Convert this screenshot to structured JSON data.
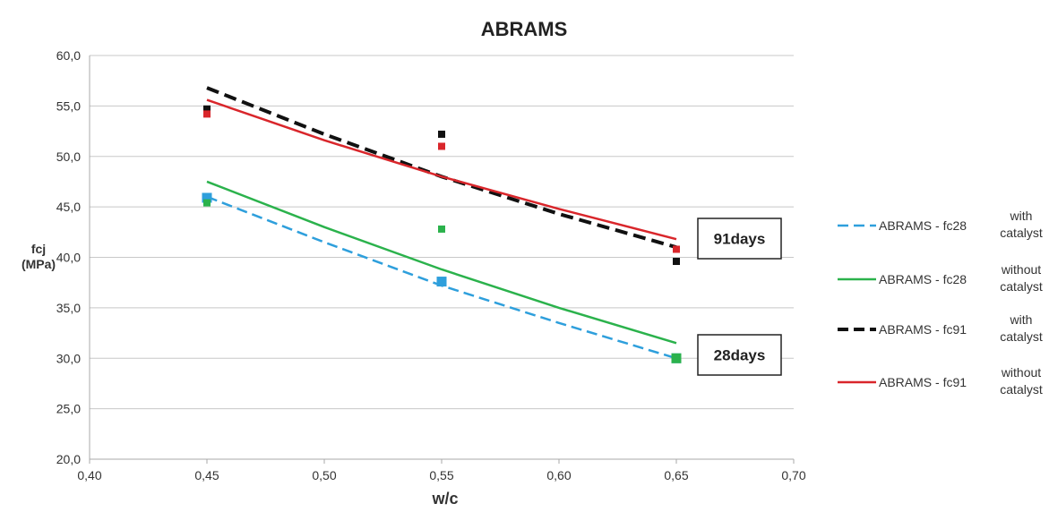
{
  "chart_data": {
    "type": "scatter",
    "title": "ABRAMS",
    "xlabel": "w/c",
    "ylabel": [
      "fcj",
      "(MPa)"
    ],
    "xlim": [
      0.4,
      0.7
    ],
    "ylim": [
      20.0,
      60.0
    ],
    "x_ticks": [
      "0,40",
      "0,45",
      "0,50",
      "0,55",
      "0,60",
      "0,65",
      "0,70"
    ],
    "y_ticks": [
      "20,0",
      "25,0",
      "30,0",
      "35,0",
      "40,0",
      "45,0",
      "50,0",
      "55,0",
      "60,0"
    ],
    "x_tick_values": [
      0.4,
      0.45,
      0.5,
      0.55,
      0.6,
      0.65,
      0.7
    ],
    "y_tick_values": [
      20,
      25,
      30,
      35,
      40,
      45,
      50,
      55,
      60
    ],
    "grid": "horizontal",
    "legend_position": "right",
    "series": [
      {
        "name": "ABRAMS - fc28",
        "name_note": "with catalyst",
        "color": "#2e9fdc",
        "dash": "dashed",
        "points": {
          "x": [
            0.45,
            0.55,
            0.65
          ],
          "y": [
            45.9,
            37.6,
            30.0
          ]
        },
        "fit": {
          "x": [
            0.45,
            0.5,
            0.55,
            0.6,
            0.65
          ],
          "y": [
            46.0,
            41.5,
            37.2,
            33.5,
            30.0
          ]
        }
      },
      {
        "name": "ABRAMS - fc28",
        "name_note": "without catalyst",
        "color": "#2bb24c",
        "dash": "solid",
        "points": {
          "x": [
            0.45,
            0.55,
            0.65
          ],
          "y": [
            45.4,
            42.8,
            30.0
          ]
        },
        "fit": {
          "x": [
            0.45,
            0.5,
            0.55,
            0.6,
            0.65
          ],
          "y": [
            47.5,
            43.0,
            38.8,
            35.0,
            31.5
          ]
        }
      },
      {
        "name": "ABRAMS -  fc91",
        "name_note": "with catalyst",
        "color": "#111111",
        "dash": "dashed",
        "points": {
          "x": [
            0.45,
            0.55,
            0.65
          ],
          "y": [
            54.7,
            52.2,
            39.6
          ]
        },
        "fit": {
          "x": [
            0.45,
            0.5,
            0.55,
            0.6,
            0.65
          ],
          "y": [
            56.8,
            52.2,
            48.0,
            44.3,
            41.0
          ]
        }
      },
      {
        "name": "ABRAMS -  fc91",
        "name_note": "without catalyst",
        "color": "#d9262b",
        "dash": "solid",
        "points": {
          "x": [
            0.45,
            0.55,
            0.65
          ],
          "y": [
            54.2,
            51.0,
            40.8
          ]
        },
        "fit": {
          "x": [
            0.45,
            0.5,
            0.55,
            0.6,
            0.65
          ],
          "y": [
            55.6,
            51.6,
            48.0,
            44.8,
            41.8
          ]
        }
      }
    ],
    "annotations": [
      {
        "text": "91days",
        "near": "fc91 at w/c 0.65"
      },
      {
        "text": "28days",
        "near": "fc28 at w/c 0.65"
      }
    ]
  }
}
